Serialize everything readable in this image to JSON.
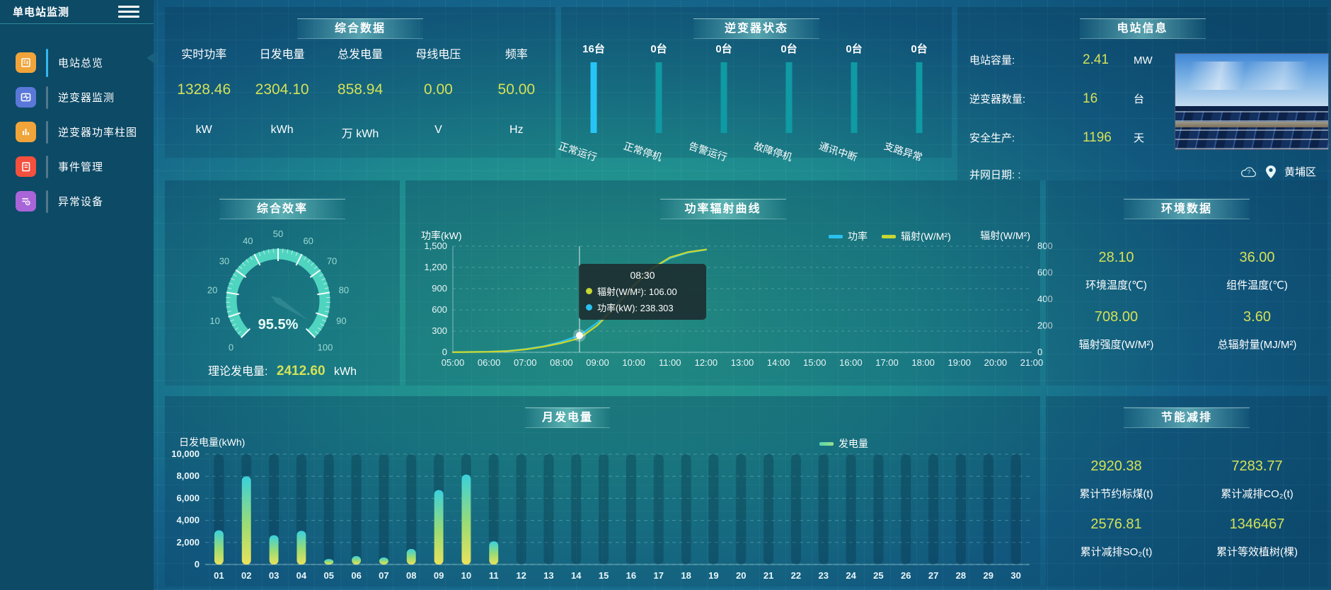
{
  "app": {
    "title": "单电站监测"
  },
  "colors": {
    "accent_yellow": "#d4e157",
    "power_line": "#29c2f0",
    "radiation_line": "#c6d632",
    "bar_active": "#27c5f5",
    "bar_idle": "#0f9aa4",
    "gauge_arc": "#4fd4c0",
    "monthly_bar_gradient": [
      "#3ad0dc",
      "#9bdc74",
      "#e9e25c"
    ]
  },
  "sidebar": {
    "items": [
      {
        "label": "电站总览",
        "icon": "news-icon",
        "color": "#f0a43a",
        "active": true
      },
      {
        "label": "逆变器监测",
        "icon": "monitor-wave-icon",
        "color": "#5a78d9",
        "active": false
      },
      {
        "label": "逆变器功率柱图",
        "icon": "bar-chart-icon",
        "color": "#f0a43a",
        "active": false
      },
      {
        "label": "事件管理",
        "icon": "notebook-icon",
        "color": "#f4503e",
        "active": false
      },
      {
        "label": "异常设备",
        "icon": "device-list-clock-icon",
        "color": "#a964d8",
        "active": false
      }
    ]
  },
  "overview": {
    "title": "综合数据",
    "stats": [
      {
        "label": "实时功率",
        "value": "1328.46",
        "unit": "kW"
      },
      {
        "label": "日发电量",
        "value": "2304.10",
        "unit": "kWh"
      },
      {
        "label": "总发电量",
        "value": "858.94",
        "unit": "万 kWh"
      },
      {
        "label": "母线电压",
        "value": "0.00",
        "unit": "V"
      },
      {
        "label": "频率",
        "value": "50.00",
        "unit": "Hz"
      }
    ]
  },
  "inverter_status": {
    "title": "逆变器状态",
    "unit": "台",
    "items": [
      {
        "label": "正常运行",
        "count": "16台",
        "active": true
      },
      {
        "label": "正常停机",
        "count": "0台",
        "active": false
      },
      {
        "label": "告警运行",
        "count": "0台",
        "active": false
      },
      {
        "label": "故障停机",
        "count": "0台",
        "active": false
      },
      {
        "label": "通讯中断",
        "count": "0台",
        "active": false
      },
      {
        "label": "支路异常",
        "count": "0台",
        "active": false
      }
    ]
  },
  "station_info": {
    "title": "电站信息",
    "rows": [
      {
        "label": "电站容量:",
        "value": "2.41",
        "unit": "MW"
      },
      {
        "label": "逆变器数量:",
        "value": "16",
        "unit": "台"
      },
      {
        "label": "安全生产:",
        "value": "1196",
        "unit": "天"
      }
    ],
    "grid_date_label": "并网日期: :",
    "location": "黄埔区"
  },
  "efficiency": {
    "title": "综合效率",
    "gauge_value": "95.5%",
    "theory_label": "理论发电量:",
    "theory_value": "2412.60",
    "theory_unit": "kWh"
  },
  "power_curve": {
    "title": "功率辐射曲线",
    "y_left_name": "功率(kW)",
    "y_right_name": "辐射(W/M²)",
    "legend": [
      "功率",
      "辐射(W/M²)"
    ],
    "tooltip": {
      "time": "08:30",
      "lines": [
        {
          "label": "辐射(W/M²)",
          "value": "106.00",
          "color": "#c6d632"
        },
        {
          "label": "功率(kW)",
          "value": "238.303",
          "color": "#29c2f0"
        }
      ]
    }
  },
  "environment": {
    "title": "环境数据",
    "cells": [
      {
        "value": "28.10",
        "label": "环境温度(℃)"
      },
      {
        "value": "36.00",
        "label": "组件温度(℃)"
      },
      {
        "value": "708.00",
        "label": "辐射强度(W/M²)"
      },
      {
        "value": "3.60",
        "label": "总辐射量(MJ/M²)"
      }
    ]
  },
  "monthly": {
    "title": "月发电量",
    "y_name": "日发电量(kWh)",
    "legend": "发电量"
  },
  "saving": {
    "title": "节能减排",
    "cells": [
      {
        "value": "2920.38",
        "label": "累计节约标煤(t)"
      },
      {
        "value": "7283.77",
        "label": "累计减排CO₂(t)"
      },
      {
        "value": "2576.81",
        "label": "累计减排SO₂(t)"
      },
      {
        "value": "1346467",
        "label": "累计等效植树(棵)"
      }
    ]
  },
  "chart_data": [
    {
      "id": "inverter-status",
      "type": "bar",
      "title": "逆变器状态",
      "categories": [
        "正常运行",
        "正常停机",
        "告警运行",
        "故障停机",
        "通讯中断",
        "支路异常"
      ],
      "values": [
        16,
        0,
        0,
        0,
        0,
        0
      ],
      "unit": "台",
      "display": "equal-height-status-bars",
      "bar_colors": [
        "#27c5f5",
        "#0f9aa4",
        "#0f9aa4",
        "#0f9aa4",
        "#0f9aa4",
        "#0f9aa4"
      ]
    },
    {
      "id": "efficiency-gauge",
      "type": "gauge",
      "title": "综合效率",
      "value": 95.5,
      "unit": "%",
      "min": 0,
      "max": 100,
      "ticks": [
        0,
        10,
        20,
        30,
        40,
        50,
        60,
        70,
        80,
        90,
        100
      ]
    },
    {
      "id": "power-radiation",
      "type": "line",
      "title": "功率辐射曲线",
      "x_axis_labels": [
        "05:00",
        "06:00",
        "07:00",
        "08:00",
        "09:00",
        "10:00",
        "11:00",
        "12:00",
        "13:00",
        "14:00",
        "15:00",
        "16:00",
        "17:00",
        "18:00",
        "19:00",
        "20:00",
        "21:00"
      ],
      "x_range_hours": [
        5,
        21
      ],
      "x": [
        "05:00",
        "05:30",
        "06:00",
        "06:30",
        "07:00",
        "07:30",
        "08:00",
        "08:30",
        "09:00",
        "09:30",
        "10:00",
        "10:30",
        "11:00",
        "11:30",
        "12:00"
      ],
      "series": [
        {
          "name": "功率",
          "axis": "left",
          "color": "#29c2f0",
          "values": [
            2,
            4,
            8,
            18,
            45,
            85,
            150,
            238.303,
            420,
            680,
            950,
            1180,
            1330,
            1410,
            1450
          ]
        },
        {
          "name": "辐射(W/M²)",
          "axis": "right",
          "color": "#c6d632",
          "values": [
            1,
            2,
            4,
            9,
            22,
            42,
            70,
            106,
            205,
            345,
            500,
            630,
            715,
            755,
            775
          ]
        }
      ],
      "y_left": {
        "name": "功率(kW)",
        "min": 0,
        "max": 1500,
        "ticks": [
          0,
          300,
          600,
          900,
          1200,
          1500
        ]
      },
      "y_right": {
        "name": "辐射(W/M²)",
        "min": 0,
        "max": 800,
        "ticks": [
          0,
          200,
          400,
          600,
          800
        ]
      },
      "highlight": {
        "x": "08:30",
        "power": 238.303,
        "radiation": 106.0
      },
      "legend_position": "top",
      "grid": "dashed-horizontal"
    },
    {
      "id": "monthly-energy",
      "type": "bar",
      "title": "月发电量",
      "y_name": "日发电量(kWh)",
      "ylim": [
        0,
        10000
      ],
      "y_ticks": [
        0,
        2000,
        4000,
        6000,
        8000,
        10000
      ],
      "categories": [
        "01",
        "02",
        "03",
        "04",
        "05",
        "06",
        "07",
        "08",
        "09",
        "10",
        "11",
        "12",
        "13",
        "14",
        "15",
        "16",
        "17",
        "18",
        "19",
        "20",
        "21",
        "22",
        "23",
        "24",
        "25",
        "26",
        "27",
        "28",
        "29",
        "30"
      ],
      "values": [
        3100,
        8000,
        2650,
        3050,
        500,
        770,
        640,
        1410,
        6750,
        8150,
        2100,
        0,
        0,
        0,
        0,
        0,
        0,
        0,
        0,
        0,
        0,
        0,
        0,
        0,
        0,
        0,
        0,
        0,
        0,
        0
      ],
      "legend": "发电量",
      "grid": "dashed-horizontal"
    }
  ]
}
